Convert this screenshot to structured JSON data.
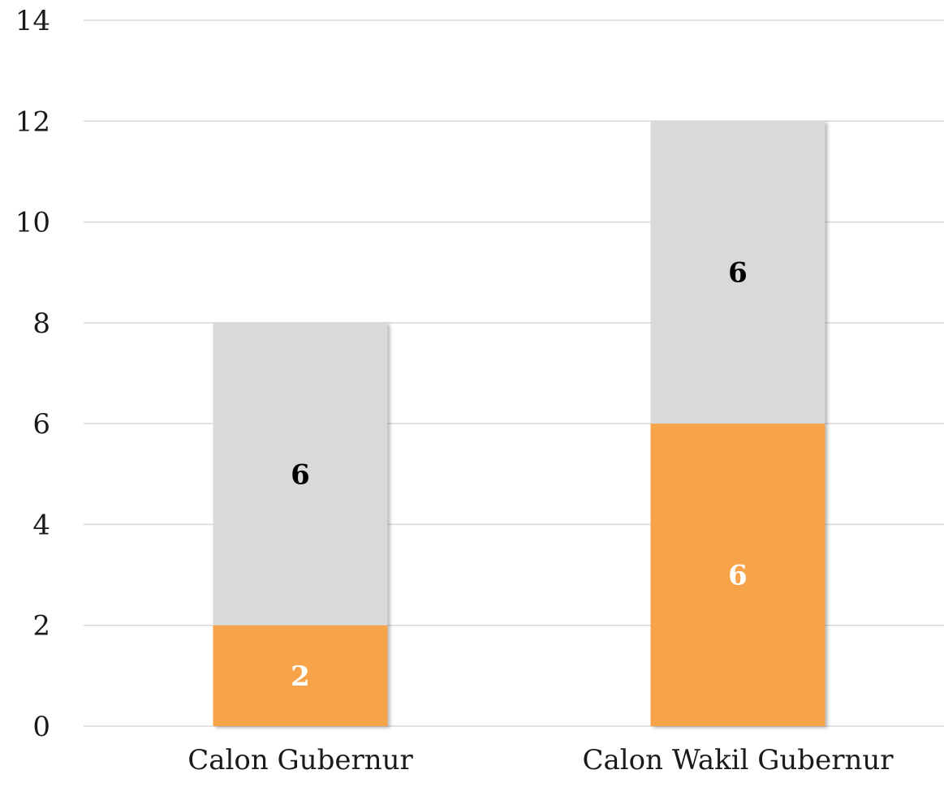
{
  "chart_data": {
    "type": "bar",
    "stacked": true,
    "categories": [
      "Calon Gubernur",
      "Calon Wakil Gubernur"
    ],
    "series": [
      {
        "values": [
          2,
          6
        ],
        "color": "#f7a348",
        "label_color": "#ffffff"
      },
      {
        "values": [
          6,
          6
        ],
        "color": "#d9d9d9",
        "label_color": "#000000"
      }
    ],
    "ylim": [
      0,
      14
    ],
    "yticks": [
      0,
      2,
      4,
      6,
      8,
      10,
      12,
      14
    ],
    "grid": true,
    "legend": "none",
    "title": "",
    "xlabel": "",
    "ylabel": ""
  }
}
